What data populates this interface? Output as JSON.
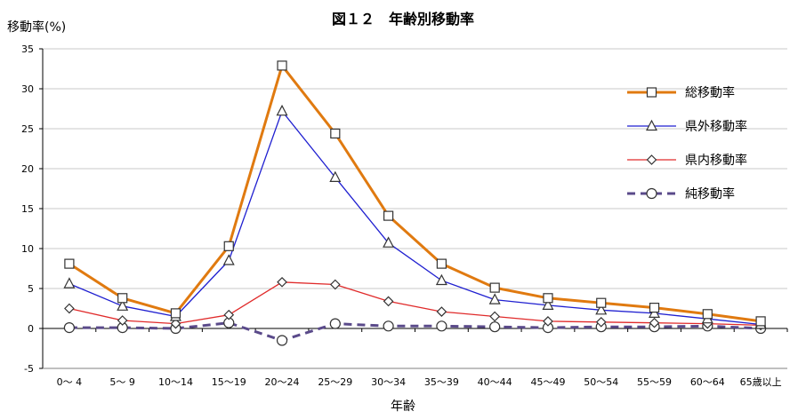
{
  "chart_data": {
    "type": "line",
    "title": "図１２　年齢別移動率",
    "ylabel": "移動率(%)",
    "xlabel": "年齢",
    "ylim": [
      -5,
      35
    ],
    "yticks": [
      -5,
      0,
      5,
      10,
      15,
      20,
      25,
      30,
      35
    ],
    "grid": true,
    "legend_position": "right",
    "categories": [
      "0～ 4",
      "5～ 9",
      "10～14",
      "15～19",
      "20～24",
      "25～29",
      "30～34",
      "35～39",
      "40～44",
      "45～49",
      "50～54",
      "55～59",
      "60～64",
      "65歳以上"
    ],
    "series": [
      {
        "name": "総移動率",
        "color": "#E07A10",
        "marker": "square",
        "dash": false,
        "values": [
          8.1,
          3.8,
          1.9,
          10.3,
          32.9,
          24.4,
          14.1,
          8.1,
          5.1,
          3.8,
          3.2,
          2.6,
          1.8,
          0.9
        ]
      },
      {
        "name": "県外移動率",
        "color": "#1F1FD0",
        "marker": "triangle",
        "dash": false,
        "values": [
          5.6,
          2.8,
          1.5,
          8.5,
          27.2,
          18.9,
          10.7,
          6.0,
          3.6,
          2.9,
          2.3,
          1.9,
          1.2,
          0.5
        ]
      },
      {
        "name": "県内移動率",
        "color": "#E02A2A",
        "marker": "diamond",
        "dash": false,
        "values": [
          2.5,
          1.0,
          0.6,
          1.7,
          5.8,
          5.5,
          3.4,
          2.1,
          1.5,
          0.9,
          0.8,
          0.7,
          0.6,
          0.4
        ]
      },
      {
        "name": "純移動率",
        "color": "#5A4A8A",
        "marker": "circle",
        "dash": true,
        "values": [
          0.1,
          0.1,
          0.0,
          0.7,
          -1.5,
          0.6,
          0.3,
          0.3,
          0.2,
          0.1,
          0.2,
          0.2,
          0.3,
          0.0
        ]
      }
    ]
  }
}
